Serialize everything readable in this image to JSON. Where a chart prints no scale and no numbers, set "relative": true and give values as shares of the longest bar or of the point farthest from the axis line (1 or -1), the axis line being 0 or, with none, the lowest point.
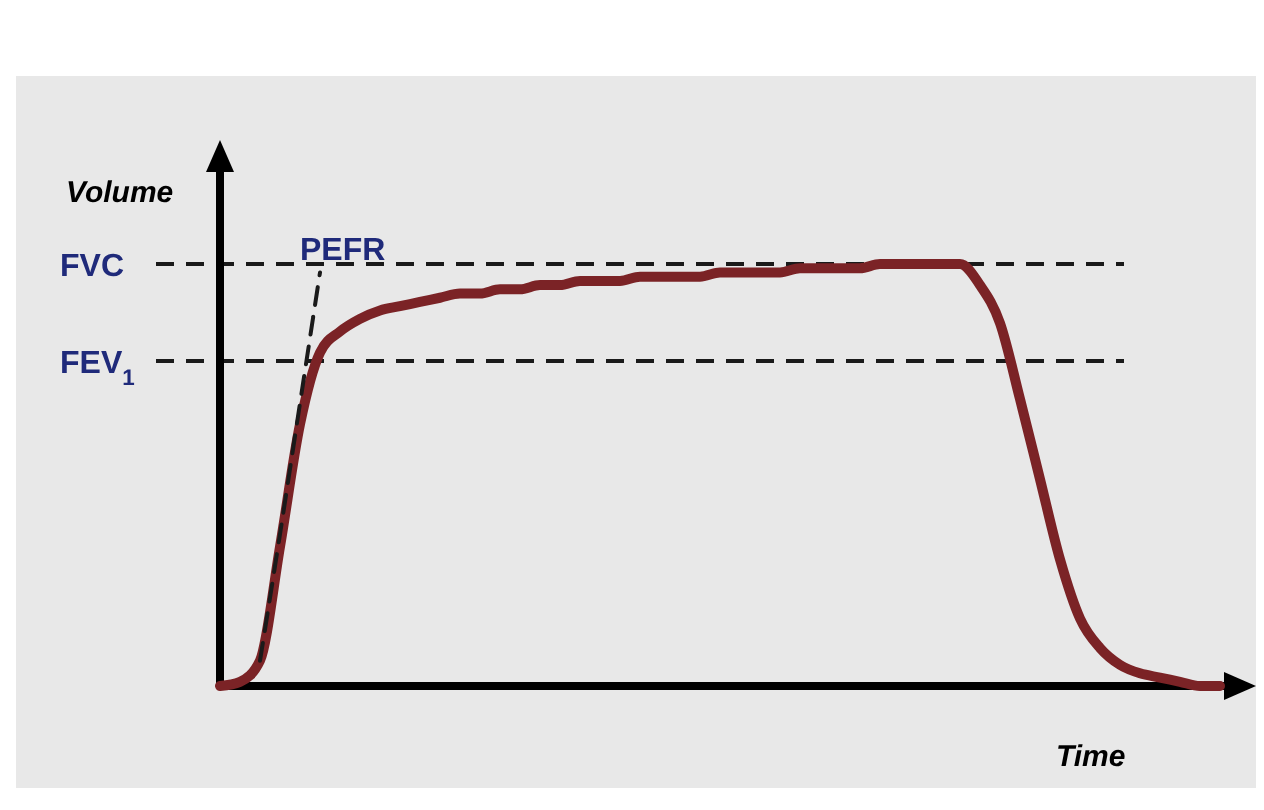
{
  "chart_data": {
    "type": "line",
    "relative": true,
    "xlabel": "Time",
    "ylabel": "Volume",
    "categories": [
      null,
      null,
      null,
      null,
      null,
      null,
      null,
      null,
      null,
      null,
      null,
      null,
      null,
      null,
      null,
      null,
      null,
      null,
      null,
      null,
      null,
      null,
      null,
      null,
      null,
      null,
      null,
      null,
      null,
      null,
      null,
      null,
      null,
      null,
      null,
      null,
      null,
      null,
      null,
      null,
      null,
      null,
      null,
      null,
      null,
      null,
      null,
      null,
      null,
      null,
      null
    ],
    "series": [
      {
        "color": "#7b2326",
        "line_style": "solid",
        "values": [
          0,
          0.01,
          0.06,
          0.33,
          0.62,
          0.79,
          0.84,
          0.87,
          0.89,
          0.9,
          0.91,
          0.92,
          0.93,
          0.93,
          0.94,
          0.94,
          0.95,
          0.95,
          0.96,
          0.96,
          0.96,
          0.97,
          0.97,
          0.97,
          0.97,
          0.98,
          0.98,
          0.98,
          0.98,
          0.99,
          0.99,
          0.99,
          0.99,
          1,
          1,
          1,
          1,
          1,
          0.95,
          0.86,
          0.68,
          0.49,
          0.3,
          0.16,
          0.09,
          0.05,
          0.03,
          0.02,
          0.01,
          0,
          0
        ]
      },
      {
        "name": "PEFR",
        "color": "#1a1a1a",
        "line_style": "dashed",
        "values": [
          null,
          null,
          0.06,
          0.36,
          0.67,
          0.98,
          null,
          null,
          null,
          null,
          null,
          null,
          null,
          null,
          null,
          null,
          null,
          null,
          null,
          null,
          null,
          null,
          null,
          null,
          null,
          null,
          null,
          null,
          null,
          null,
          null,
          null,
          null,
          null,
          null,
          null,
          null,
          null,
          null,
          null,
          null,
          null,
          null,
          null,
          null,
          null,
          null,
          null,
          null,
          null,
          null
        ]
      }
    ],
    "ref_lines": [
      {
        "axis": "y",
        "value": 1,
        "label": "FVC",
        "line_style": "dashed",
        "color": "#1a1a1a"
      },
      {
        "axis": "y",
        "value": 0.77,
        "label": "FEV$_{1}$",
        "line_style": "dashed",
        "color": "#1a1a1a"
      }
    ],
    "grid": false
  }
}
